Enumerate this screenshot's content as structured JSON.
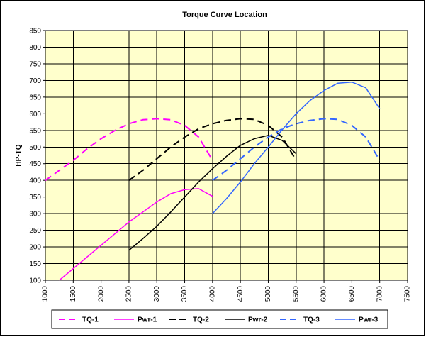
{
  "chart_data": {
    "type": "line",
    "title": "Torque Curve Location",
    "xlabel": "",
    "ylabel": "HP-TQ",
    "xlim": [
      1000,
      7500
    ],
    "ylim": [
      100,
      850
    ],
    "xticks": [
      1000,
      1500,
      2000,
      2500,
      3000,
      3500,
      4000,
      4500,
      5000,
      5500,
      6000,
      6500,
      7000,
      7500
    ],
    "yticks": [
      100,
      150,
      200,
      250,
      300,
      350,
      400,
      450,
      500,
      550,
      600,
      650,
      700,
      750,
      800,
      850
    ],
    "grid": true,
    "legend_position": "bottom",
    "plot_background": "#ffffcc",
    "series": [
      {
        "name": "TQ-1",
        "color": "#ff00ff",
        "dash": "dashed",
        "x": [
          1000,
          1250,
          1500,
          1750,
          2000,
          2250,
          2500,
          2750,
          3000,
          3250,
          3500,
          3750,
          4000
        ],
        "y": [
          400,
          430,
          460,
          495,
          525,
          550,
          570,
          582,
          585,
          582,
          565,
          530,
          460
        ]
      },
      {
        "name": "Pwr-1",
        "color": "#ff00ff",
        "dash": "solid",
        "x": [
          1250,
          1500,
          1750,
          2000,
          2250,
          2500,
          2750,
          3000,
          3250,
          3500,
          3750,
          4000
        ],
        "y": [
          100,
          135,
          170,
          205,
          240,
          275,
          305,
          335,
          360,
          372,
          375,
          352
        ]
      },
      {
        "name": "TQ-2",
        "color": "#000000",
        "dash": "dashed",
        "x": [
          2500,
          2750,
          3000,
          3250,
          3500,
          3750,
          4000,
          4250,
          4500,
          4750,
          5000,
          5250,
          5500
        ],
        "y": [
          400,
          430,
          465,
          500,
          530,
          555,
          570,
          580,
          585,
          583,
          565,
          530,
          460
        ]
      },
      {
        "name": "Pwr-2",
        "color": "#000000",
        "dash": "solid",
        "x": [
          2500,
          2750,
          3000,
          3250,
          3500,
          3750,
          4000,
          4250,
          4500,
          4750,
          5000,
          5250,
          5500
        ],
        "y": [
          190,
          225,
          262,
          305,
          350,
          395,
          435,
          472,
          505,
          525,
          535,
          520,
          480
        ]
      },
      {
        "name": "TQ-3",
        "color": "#3366ff",
        "dash": "dashed",
        "x": [
          4000,
          4250,
          4500,
          4750,
          5000,
          5250,
          5500,
          5750,
          6000,
          6250,
          6500,
          6750,
          7000
        ],
        "y": [
          400,
          430,
          465,
          500,
          530,
          555,
          570,
          580,
          585,
          583,
          565,
          530,
          460
        ]
      },
      {
        "name": "Pwr-3",
        "color": "#3366ff",
        "dash": "solid",
        "x": [
          4000,
          4250,
          4500,
          4750,
          5000,
          5250,
          5500,
          5750,
          6000,
          6250,
          6500,
          6750,
          7000
        ],
        "y": [
          300,
          345,
          395,
          450,
          500,
          552,
          600,
          640,
          670,
          692,
          695,
          678,
          615
        ]
      }
    ]
  }
}
